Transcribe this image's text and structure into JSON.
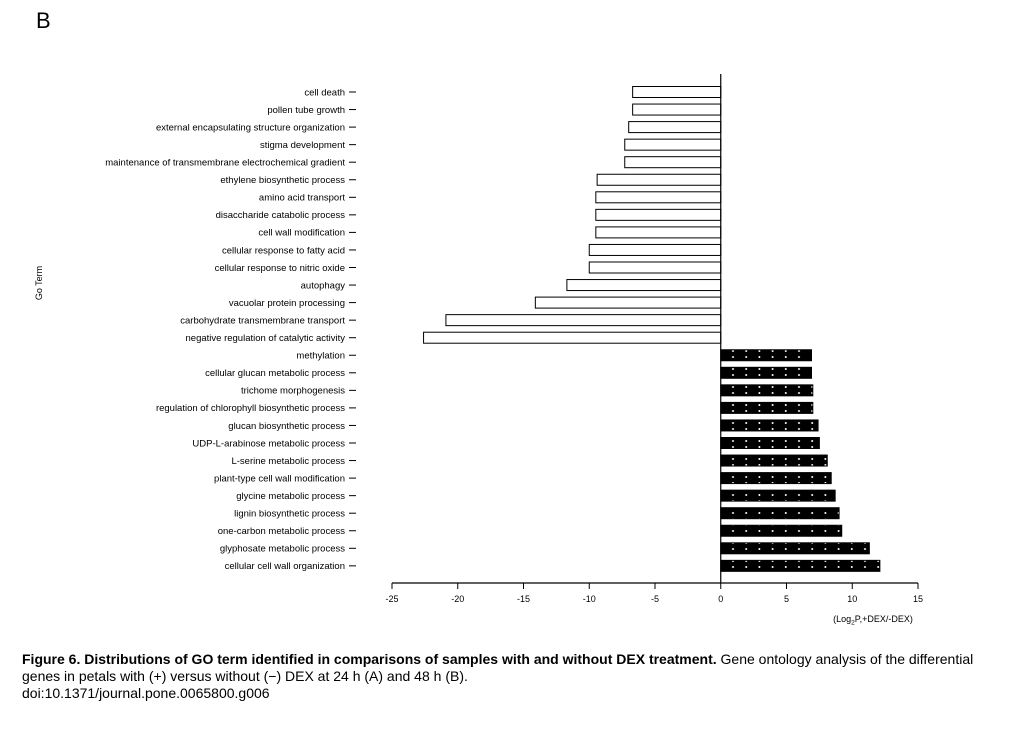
{
  "panel_label": "B",
  "chart_data": {
    "type": "bar",
    "orientation": "horizontal",
    "ylabel": "Go Term",
    "xlabel_parts": [
      "(Log",
      "2",
      "P,+DEX/-DEX)"
    ],
    "xlim": [
      -25,
      15
    ],
    "xticks": [
      -25,
      -20,
      -15,
      -10,
      -5,
      0,
      5,
      10,
      15
    ],
    "categories": [
      "cell death",
      "pollen tube growth",
      "external encapsulating structure organization",
      "stigma development",
      "maintenance of transmembrane electrochemical gradient",
      "ethylene biosynthetic process",
      "amino acid transport",
      "disaccharide catabolic process",
      "cell wall modification",
      "cellular response to fatty acid",
      "cellular response to nitric oxide",
      "autophagy",
      "vacuolar protein processing",
      "carbohydrate transmembrane transport",
      "negative regulation of catalytic activity",
      "methylation",
      "cellular glucan metabolic process",
      "trichome morphogenesis",
      "regulation of chlorophyll biosynthetic process",
      "glucan biosynthetic process",
      "UDP-L-arabinose metabolic process",
      "L-serine metabolic process",
      "plant-type cell wall modification",
      "glycine metabolic process",
      "lignin biosynthetic process",
      "one-carbon metabolic process",
      "glyphosate metabolic process",
      "cellular cell wall organization"
    ],
    "values": [
      -6.7,
      -6.7,
      -7.0,
      -7.3,
      -7.3,
      -9.4,
      -9.5,
      -9.5,
      -9.5,
      -10.0,
      -10.0,
      -11.7,
      -14.1,
      -20.9,
      -22.6,
      6.9,
      6.9,
      7.0,
      7.0,
      7.4,
      7.5,
      8.1,
      8.4,
      8.7,
      9.0,
      9.2,
      11.3,
      12.1
    ],
    "colors": {
      "negative_fill": "#ffffff",
      "positive_fill": "#000000",
      "stroke": "#000000",
      "dot": "#ffffff"
    },
    "grid": false
  },
  "caption": {
    "bold": "Figure 6. Distributions of GO term identified in comparisons of samples with and without DEX treatment.",
    "text": " Gene ontology analysis of the differential genes in petals with (+) versus without (−) DEX at 24 h (A) and 48 h (B).",
    "doi": "doi:10.1371/journal.pone.0065800.g006"
  }
}
